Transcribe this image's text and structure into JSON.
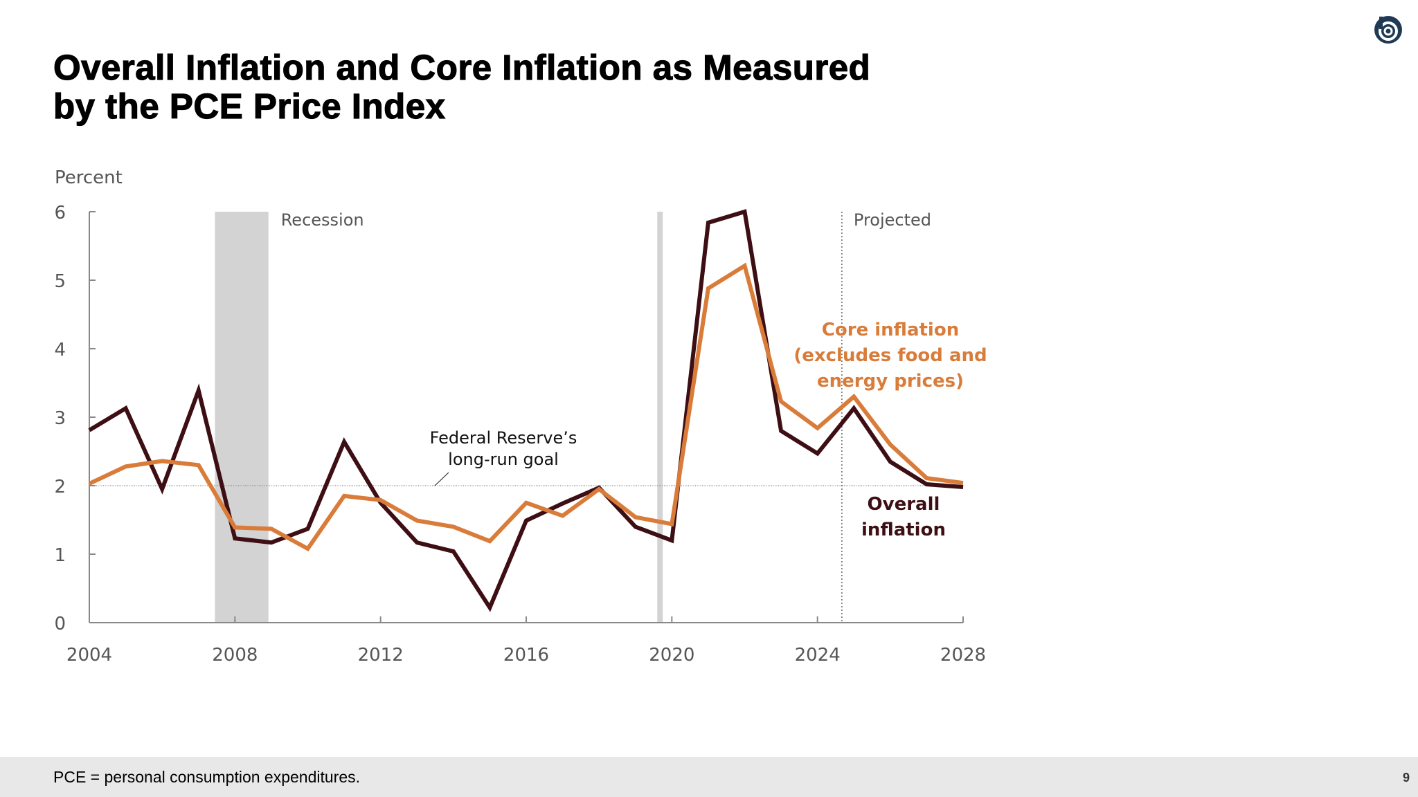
{
  "slide": {
    "title_lines": [
      "Overall Inflation and Core Inflation as Measured",
      "by the PCE Price Index"
    ],
    "footnote": "PCE = personal consumption expenditures.",
    "page_number": "9",
    "logo_icon": "concentric-circle-logo-icon"
  },
  "chart_data": {
    "type": "line",
    "title": "",
    "ylabel": "Percent",
    "xlabel": "",
    "xlim": [
      2004,
      2028
    ],
    "ylim": [
      0,
      6
    ],
    "x_ticks": [
      "2004",
      "2008",
      "2012",
      "2016",
      "2020",
      "2024",
      "2028"
    ],
    "y_ticks": [
      "0",
      "1",
      "2",
      "3",
      "4",
      "5",
      "6"
    ],
    "grid": false,
    "x": [
      2004,
      2005,
      2006,
      2007,
      2008,
      2009,
      2010,
      2011,
      2012,
      2013,
      2014,
      2015,
      2016,
      2017,
      2018,
      2019,
      2020,
      2021,
      2022,
      2023,
      2024,
      2025,
      2026,
      2027,
      2028
    ],
    "series": [
      {
        "name": "Overall inflation",
        "color": "#3d0f14",
        "values": [
          2.81,
          3.13,
          1.95,
          3.39,
          1.23,
          1.17,
          1.37,
          2.64,
          1.75,
          1.17,
          1.04,
          0.22,
          1.49,
          1.74,
          1.97,
          1.4,
          1.2,
          5.84,
          6.0,
          2.8,
          2.47,
          3.13,
          2.35,
          2.02,
          1.98
        ]
      },
      {
        "name": "Core inflation (excludes food and energy prices)",
        "color": "#d97c3a",
        "values": [
          2.03,
          2.28,
          2.36,
          2.3,
          1.39,
          1.37,
          1.08,
          1.85,
          1.79,
          1.49,
          1.4,
          1.19,
          1.75,
          1.56,
          1.95,
          1.54,
          1.44,
          4.88,
          5.21,
          3.23,
          2.84,
          3.3,
          2.6,
          2.11,
          2.04
        ]
      }
    ],
    "series_labels": {
      "overall": [
        "Overall",
        "inflation"
      ],
      "core": [
        "Core inflation",
        "(excludes food and",
        "energy prices)"
      ]
    },
    "recessions": [
      [
        2007.45,
        2008.92
      ],
      [
        2019.6,
        2019.75
      ]
    ],
    "recession_label": "Recession",
    "recession_color": "#d3d3d3",
    "projection_start": 2024.67,
    "projection_label": "Projected",
    "goal": {
      "value": 2,
      "label_lines": [
        "Federal Reserve’s",
        "long-run goal"
      ]
    }
  }
}
